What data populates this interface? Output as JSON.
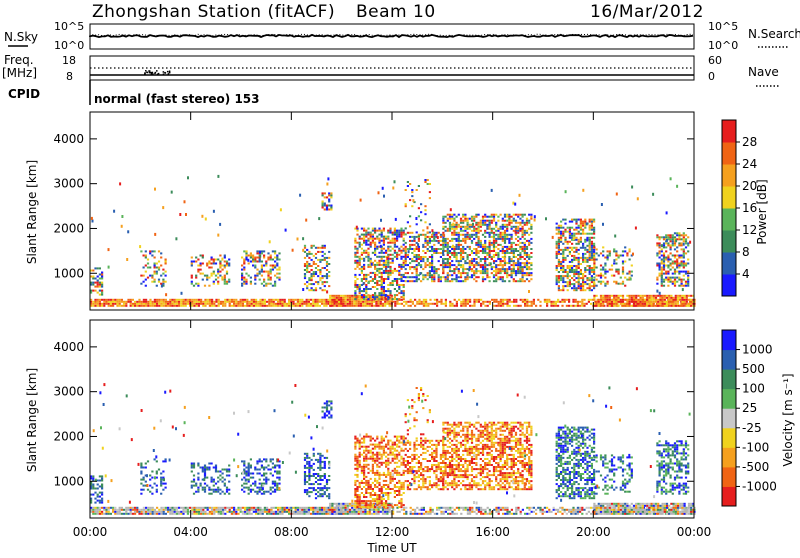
{
  "header": {
    "station": "Zhongshan Station (fitACF)",
    "beam": "Beam 10",
    "date": "16/Mar/2012"
  },
  "aux_panels": {
    "nsky_label": "N.Sky",
    "nsky_ticks": [
      "10^5",
      "10^0"
    ],
    "nsearch_label": "N.Search",
    "nsearch_ticks": [
      "10^5",
      "10^0"
    ],
    "freq_label_1": "Freq.",
    "freq_label_2": "[MHz]",
    "freq_ticks": [
      "18",
      "8"
    ],
    "nave_label": "Nave",
    "nave_ticks": [
      "60",
      "0"
    ],
    "cpid_label": "CPID",
    "cpid_text": "normal (fast stereo) 153"
  },
  "colors": {
    "power_scale": [
      "#1a1aff",
      "#2a5fb0",
      "#3c8c5a",
      "#5ab45a",
      "#f0d21e",
      "#f5a01e",
      "#f06414",
      "#e61e1e"
    ],
    "velocity_scale": [
      "#e61e1e",
      "#f06414",
      "#f5a01e",
      "#f0d21e",
      "#c8c8c8",
      "#5ab45a",
      "#3c8c5a",
      "#2a5fb0",
      "#1a1aff"
    ],
    "ground_scatter": "#b4b4b4"
  },
  "chart_data": [
    {
      "type": "heatmap",
      "name": "power",
      "ylabel": "Slant Range [km]",
      "yticks": [
        "4000",
        "3000",
        "2000",
        "1000"
      ],
      "ylim": [
        180,
        4600
      ],
      "colorbar_label": "Power [dB]",
      "colorbar_ticks": [
        "28",
        "24",
        "20",
        "16",
        "12",
        "8",
        "4"
      ],
      "clim": [
        0,
        32
      ]
    },
    {
      "type": "heatmap",
      "name": "velocity",
      "ylabel": "Slant Range [km]",
      "yticks": [
        "4000",
        "3000",
        "2000",
        "1000"
      ],
      "ylim": [
        180,
        4600
      ],
      "colorbar_label": "Velocity [m s⁻¹]",
      "colorbar_ticks": [
        "1000",
        "500",
        "100",
        "25",
        "-25",
        "-100",
        "-500",
        "-1000"
      ]
    }
  ],
  "x_axis": {
    "label": "Time UT",
    "ticks": [
      "00:00",
      "04:00",
      "08:00",
      "12:00",
      "16:00",
      "20:00",
      "00:00"
    ]
  }
}
